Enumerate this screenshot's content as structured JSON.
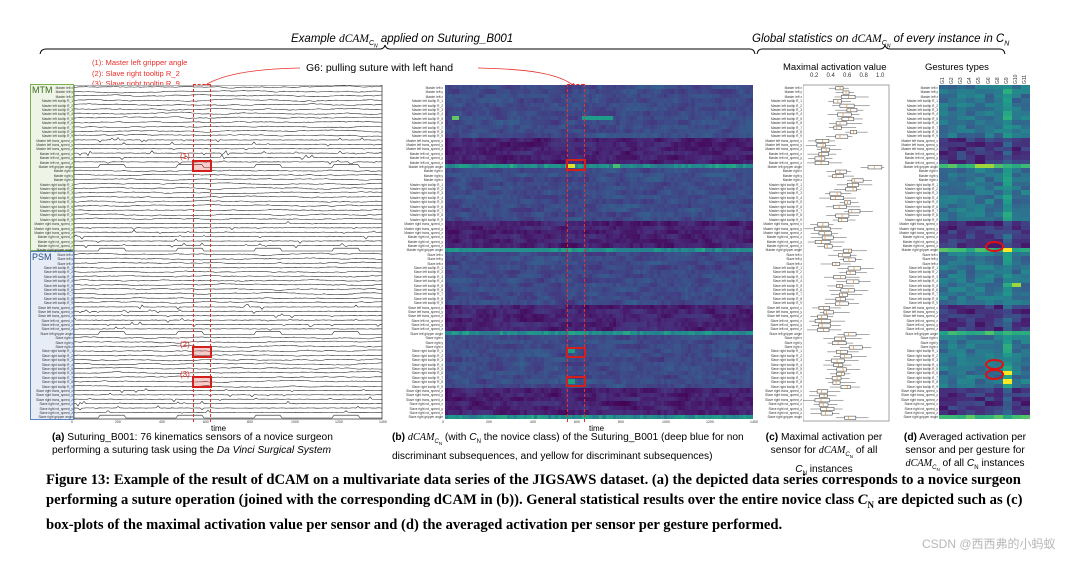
{
  "headers": {
    "left_prefix": "Example ",
    "left_math": "dCAM",
    "left_sub": "C",
    "left_subsub": "N",
    "left_suffix": " applied on Suturing_B001",
    "right_prefix": "Global statistics on ",
    "right_math": "dCAM",
    "right_sub": "C",
    "right_subsub": "N",
    "right_suffix": " of every instance in ",
    "right_cn": "C",
    "right_cn_sub": "N"
  },
  "annotations": {
    "legend": [
      "(1): Master left gripper angle",
      "(2): Slave right tooltip R_2",
      "(3): Slave right tooltip R_9"
    ],
    "gesture": "G6: pulling suture with left hand",
    "markers": [
      "(1)",
      "(2)",
      "(3)"
    ],
    "accent_color": "#e8302a"
  },
  "panel_a": {
    "groups": [
      {
        "label": "MTM",
        "color": "#7aaf4e",
        "fill": "#eef5e6"
      },
      {
        "label": "PSM",
        "color": "#5b84c4",
        "fill": "#e6edf7"
      }
    ],
    "x_ticks": [
      "0",
      "200",
      "400",
      "600",
      "800",
      "1000",
      "1200",
      "1400"
    ],
    "x_label": "time",
    "caption_tag": "(a)",
    "caption_text": " Suturing_B001: 76 kinematics sensors of a novice surgeon performing a suturing task using the ",
    "caption_italic": "Da Vinci Surgical System"
  },
  "panel_b": {
    "x_ticks": [
      "0",
      "200",
      "400",
      "600",
      "800",
      "1000",
      "1200",
      "1400"
    ],
    "x_label": "time",
    "caption_tag": "(b)",
    "caption_math": "dCAM",
    "caption_sub": "C",
    "caption_subsub": "N",
    "caption_text1": " (with ",
    "caption_cn": "C",
    "caption_cn_sub": "N",
    "caption_text2": " the novice class) of the Suturing_B001 (deep blue for non discriminant subsequences, and yellow for discriminant subsequences)"
  },
  "panel_c": {
    "title": "Maximal activation value",
    "x_ticks": [
      "0.2",
      "0.4",
      "0.6",
      "0.8",
      "1.0"
    ],
    "caption_tag": "(c)",
    "caption_line1": " Maximal activation per",
    "caption_line2a": "sensor for ",
    "caption_math": "dCAM",
    "caption_sub": "C",
    "caption_subsub": "N",
    "caption_line2b": " of all",
    "caption_cn": "C",
    "caption_cn_sub": "N",
    "caption_line3": " instances"
  },
  "panel_d": {
    "title": "Gestures types",
    "gestures": [
      "G1",
      "G2",
      "G3",
      "G4",
      "G5",
      "G6",
      "G8",
      "G9",
      "G10",
      "G11"
    ],
    "caption_tag": "(d)",
    "caption_line1": " Averaged activation per",
    "caption_line2": "sensor and per gesture for",
    "caption_math": "dCAM",
    "caption_sub": "C",
    "caption_subsub": "N",
    "caption_line3a": " of all ",
    "caption_cn": "C",
    "caption_cn_sub": "N",
    "caption_line3b": " instances"
  },
  "sensors": [
    "Master left x",
    "Master left y",
    "Master left z",
    "Master left tooltip R_1",
    "Master left tooltip R_2",
    "Master left tooltip R_3",
    "Master left tooltip R_4",
    "Master left tooltip R_5",
    "Master left tooltip R_6",
    "Master left tooltip R_7",
    "Master left tooltip R_8",
    "Master left tooltip R_9",
    "Master left trans_speed_x",
    "Master left trans_speed_y",
    "Master left trans_speed_z",
    "Master left rot_speed_x",
    "Master left rot_speed_y",
    "Master left rot_speed_z",
    "Master left gripper angle",
    "Master right x",
    "Master right y",
    "Master right z",
    "Master right tooltip R_1",
    "Master right tooltip R_2",
    "Master right tooltip R_3",
    "Master right tooltip R_4",
    "Master right tooltip R_5",
    "Master right tooltip R_6",
    "Master right tooltip R_7",
    "Master right tooltip R_8",
    "Master right tooltip R_9",
    "Master right trans_speed_x",
    "Master right trans_speed_y",
    "Master right trans_speed_z",
    "Master right rot_speed_x",
    "Master right rot_speed_y",
    "Master right rot_speed_z",
    "Master right gripper angle",
    "Slave left x",
    "Slave left y",
    "Slave left z",
    "Slave left tooltip R_1",
    "Slave left tooltip R_2",
    "Slave left tooltip R_3",
    "Slave left tooltip R_4",
    "Slave left tooltip R_5",
    "Slave left tooltip R_6",
    "Slave left tooltip R_7",
    "Slave left tooltip R_8",
    "Slave left tooltip R_9",
    "Slave left trans_speed_x",
    "Slave left trans_speed_y",
    "Slave left trans_speed_z",
    "Slave left rot_speed_x",
    "Slave left rot_speed_y",
    "Slave left rot_speed_z",
    "Slave left gripper angle",
    "Slave right x",
    "Slave right y",
    "Slave right z",
    "Slave right tooltip R_1",
    "Slave right tooltip R_2",
    "Slave right tooltip R_3",
    "Slave right tooltip R_4",
    "Slave right tooltip R_5",
    "Slave right tooltip R_6",
    "Slave right tooltip R_7",
    "Slave right tooltip R_8",
    "Slave right tooltip R_9",
    "Slave right trans_speed_x",
    "Slave right trans_speed_y",
    "Slave right trans_speed_z",
    "Slave right rot_speed_x",
    "Slave right rot_speed_y",
    "Slave right rot_speed_z",
    "Slave right gripper angle"
  ],
  "figure_caption": {
    "label": "Figure 13:",
    "text1": " Example of the result of dCAM on a multivariate data series of the JIGSAWS dataset. (a) the depicted data series corresponds to a novice surgeon performing a suture operation (joined with the corresponding dCAM in (b)). General statistical results over the entire novice class ",
    "cn": "C",
    "cn_sub": "N",
    "text2": " are depicted such as (c) box-plots of the maximal activation value per sensor and (d) the averaged activation per sensor per gesture performed."
  },
  "watermark": "CSDN @西西弗的小蚂蚁"
}
